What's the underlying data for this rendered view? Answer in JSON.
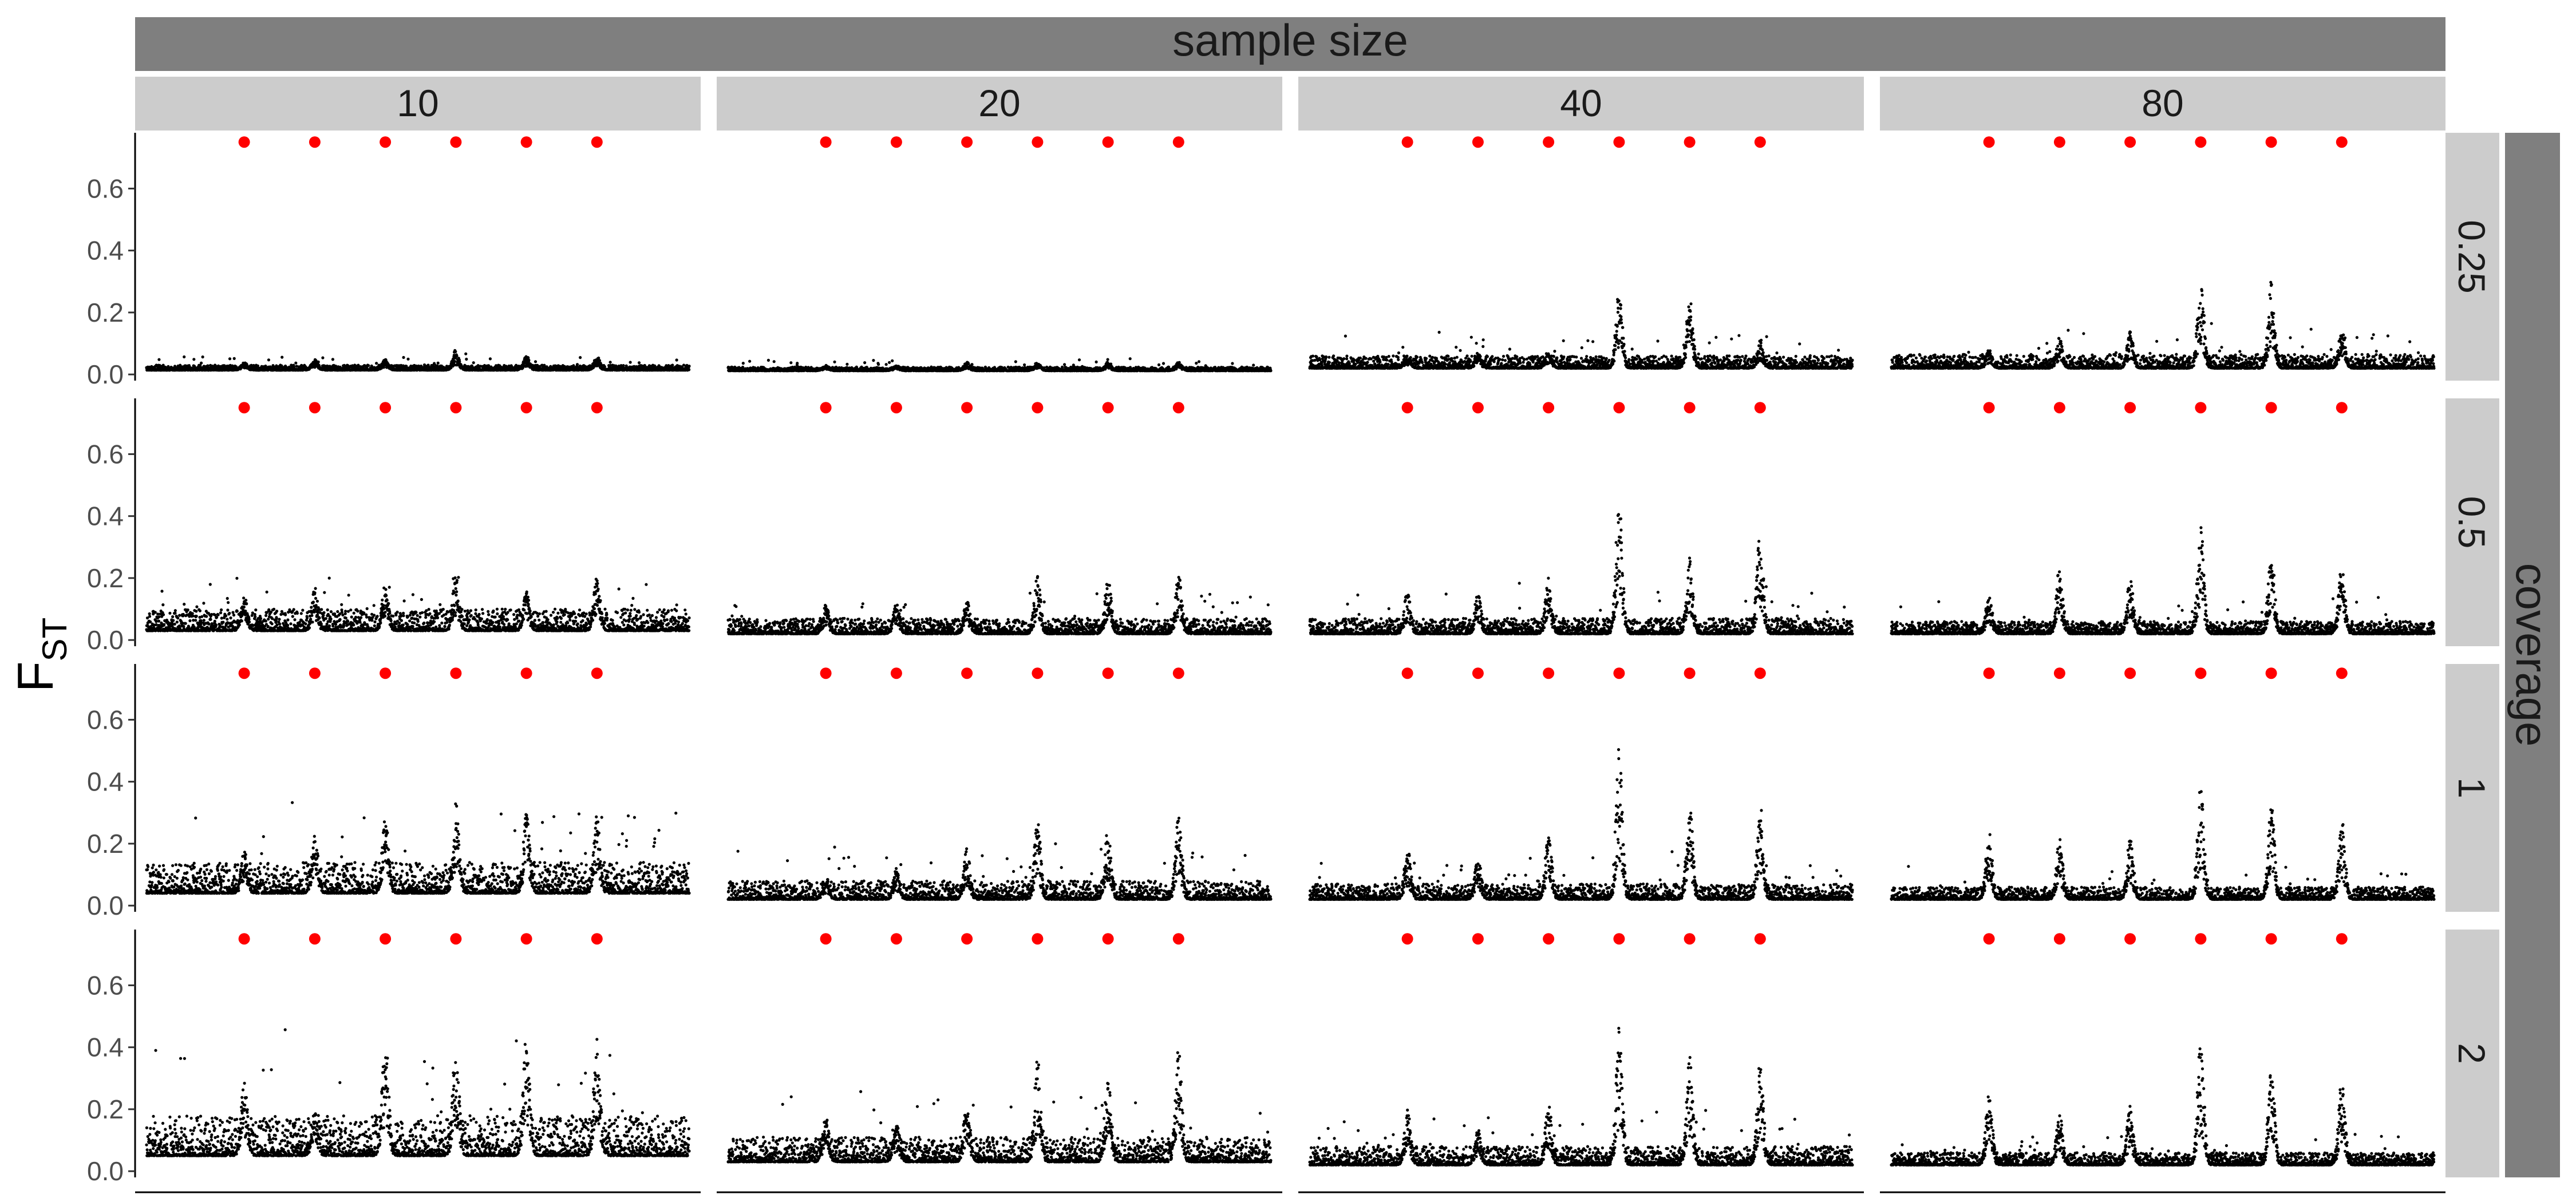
{
  "chart_data": {
    "type": "scatter",
    "facet_layout": "grid",
    "column_facet": {
      "title": "sample size",
      "levels": [
        "10",
        "20",
        "40",
        "80"
      ]
    },
    "row_facet": {
      "title": "coverage",
      "levels": [
        "0.25",
        "0.5",
        "1",
        "2"
      ]
    },
    "ylabel": "F",
    "ylabel_subscript": "ST",
    "xlabel": "",
    "y_ticks": [
      "0.0",
      "0.2",
      "0.4",
      "0.6"
    ],
    "ylim": [
      -0.02,
      0.78
    ],
    "xlim": [
      0,
      1
    ],
    "grid": false,
    "series": [
      {
        "name": "",
        "role": "windowed Fst",
        "color": "#000000"
      },
      {
        "name": "",
        "role": "selected site marker",
        "color": "#ff0000",
        "y": 0.75,
        "x": [
          0.18,
          0.31,
          0.44,
          0.57,
          0.7,
          0.83
        ]
      }
    ],
    "panels": [
      {
        "sample_size": "10",
        "coverage": "0.25",
        "baseline": 0.014,
        "noise": 0.016,
        "peak_heights": [
          0.04,
          0.05,
          0.05,
          0.08,
          0.06,
          0.06
        ]
      },
      {
        "sample_size": "20",
        "coverage": "0.25",
        "baseline": 0.012,
        "noise": 0.012,
        "peak_heights": [
          0.03,
          0.03,
          0.04,
          0.04,
          0.04,
          0.04
        ]
      },
      {
        "sample_size": "40",
        "coverage": "0.25",
        "baseline": 0.02,
        "noise": 0.04,
        "peak_heights": [
          0.06,
          0.07,
          0.08,
          0.27,
          0.25,
          0.11
        ]
      },
      {
        "sample_size": "80",
        "coverage": "0.25",
        "baseline": 0.02,
        "noise": 0.045,
        "peak_heights": [
          0.08,
          0.12,
          0.14,
          0.32,
          0.31,
          0.15
        ]
      },
      {
        "sample_size": "10",
        "coverage": "0.5",
        "baseline": 0.03,
        "noise": 0.07,
        "peak_heights": [
          0.15,
          0.17,
          0.19,
          0.22,
          0.16,
          0.21
        ]
      },
      {
        "sample_size": "20",
        "coverage": "0.5",
        "baseline": 0.02,
        "noise": 0.05,
        "peak_heights": [
          0.12,
          0.12,
          0.13,
          0.21,
          0.2,
          0.22
        ]
      },
      {
        "sample_size": "40",
        "coverage": "0.5",
        "baseline": 0.02,
        "noise": 0.05,
        "peak_heights": [
          0.16,
          0.16,
          0.2,
          0.48,
          0.27,
          0.36
        ]
      },
      {
        "sample_size": "80",
        "coverage": "0.5",
        "baseline": 0.02,
        "noise": 0.04,
        "peak_heights": [
          0.15,
          0.24,
          0.2,
          0.39,
          0.3,
          0.25
        ]
      },
      {
        "sample_size": "10",
        "coverage": "1",
        "baseline": 0.04,
        "noise": 0.1,
        "peak_heights": [
          0.18,
          0.24,
          0.29,
          0.33,
          0.3,
          0.3
        ]
      },
      {
        "sample_size": "20",
        "coverage": "1",
        "baseline": 0.02,
        "noise": 0.06,
        "peak_heights": [
          0.1,
          0.12,
          0.19,
          0.28,
          0.25,
          0.31
        ]
      },
      {
        "sample_size": "40",
        "coverage": "1",
        "baseline": 0.02,
        "noise": 0.05,
        "peak_heights": [
          0.19,
          0.16,
          0.24,
          0.51,
          0.33,
          0.33
        ]
      },
      {
        "sample_size": "80",
        "coverage": "1",
        "baseline": 0.02,
        "noise": 0.04,
        "peak_heights": [
          0.24,
          0.22,
          0.22,
          0.41,
          0.34,
          0.29
        ]
      },
      {
        "sample_size": "10",
        "coverage": "2",
        "baseline": 0.05,
        "noise": 0.13,
        "peak_heights": [
          0.29,
          0.2,
          0.45,
          0.42,
          0.44,
          0.43
        ]
      },
      {
        "sample_size": "20",
        "coverage": "2",
        "baseline": 0.03,
        "noise": 0.08,
        "peak_heights": [
          0.18,
          0.16,
          0.24,
          0.37,
          0.32,
          0.41
        ]
      },
      {
        "sample_size": "40",
        "coverage": "2",
        "baseline": 0.02,
        "noise": 0.06,
        "peak_heights": [
          0.2,
          0.14,
          0.23,
          0.47,
          0.37,
          0.36
        ]
      },
      {
        "sample_size": "80",
        "coverage": "2",
        "baseline": 0.02,
        "noise": 0.04,
        "peak_heights": [
          0.26,
          0.19,
          0.21,
          0.43,
          0.33,
          0.31
        ]
      }
    ]
  }
}
